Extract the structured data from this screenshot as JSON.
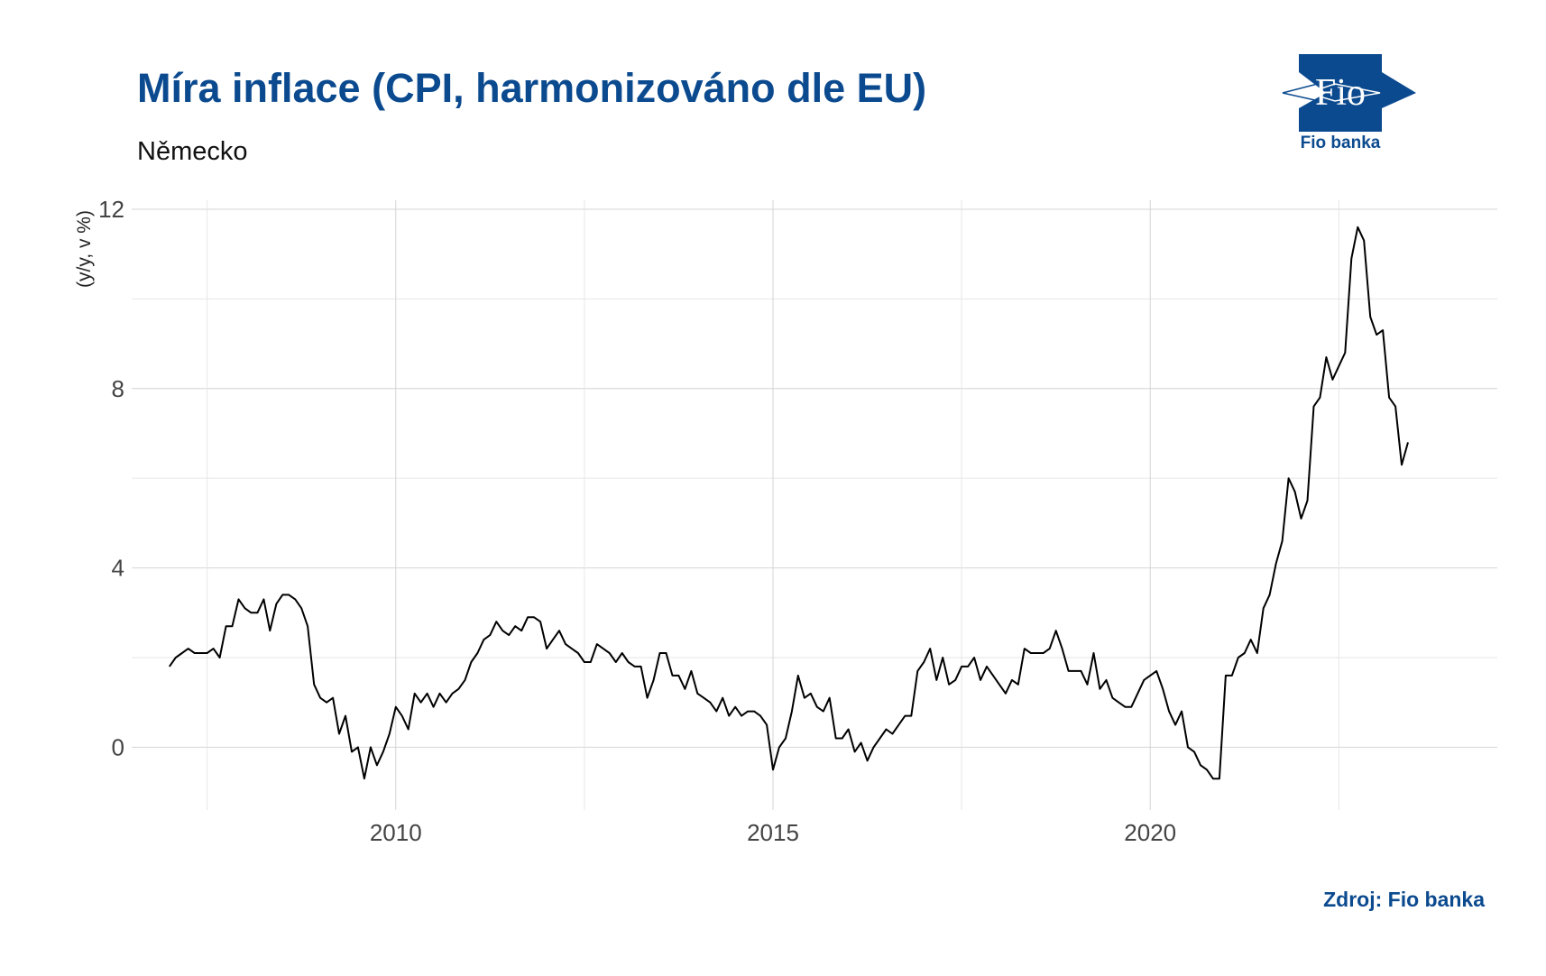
{
  "header": {
    "title": "Míra inflace (CPI, harmonizováno dle EU)",
    "subtitle": "Německo"
  },
  "logo": {
    "mark_text": "Fio",
    "caption": "Fio banka",
    "color": "#0b4a8f"
  },
  "footer": {
    "source": "Zdroj: Fio banka"
  },
  "chart_data": {
    "type": "line",
    "title": "Míra inflace (CPI, harmonizováno dle EU)",
    "subtitle": "Německo",
    "xlabel": "",
    "ylabel": "(y/y, v %)",
    "xlim": [
      2006.5,
      2024.6
    ],
    "ylim": [
      -1.4,
      12.2
    ],
    "x_ticks": [
      2010,
      2015,
      2020
    ],
    "x_tick_labels": [
      "2010",
      "2015",
      "2020"
    ],
    "x_minor_gridlines": [
      2007.5,
      2012.5,
      2017.5,
      2022.5
    ],
    "y_ticks": [
      0,
      4,
      8,
      12
    ],
    "y_tick_labels": [
      "0",
      "4",
      "8",
      "12"
    ],
    "y_minor_gridlines": [
      2,
      6,
      10
    ],
    "grid": true,
    "line_color": "#000000",
    "series": [
      {
        "x": [
          2007.0,
          2007.083,
          2007.167,
          2007.25,
          2007.333,
          2007.417,
          2007.5,
          2007.583,
          2007.667,
          2007.75,
          2007.833,
          2007.917,
          2008.0,
          2008.083,
          2008.167,
          2008.25,
          2008.333,
          2008.417,
          2008.5,
          2008.583,
          2008.667,
          2008.75,
          2008.833,
          2008.917,
          2009.0,
          2009.083,
          2009.167,
          2009.25,
          2009.333,
          2009.417,
          2009.5,
          2009.583,
          2009.667,
          2009.75,
          2009.833,
          2009.917,
          2010.0,
          2010.083,
          2010.167,
          2010.25,
          2010.333,
          2010.417,
          2010.5,
          2010.583,
          2010.667,
          2010.75,
          2010.833,
          2010.917,
          2011.0,
          2011.083,
          2011.167,
          2011.25,
          2011.333,
          2011.417,
          2011.5,
          2011.583,
          2011.667,
          2011.75,
          2011.833,
          2011.917,
          2012.0,
          2012.083,
          2012.167,
          2012.25,
          2012.333,
          2012.417,
          2012.5,
          2012.583,
          2012.667,
          2012.75,
          2012.833,
          2012.917,
          2013.0,
          2013.083,
          2013.167,
          2013.25,
          2013.333,
          2013.417,
          2013.5,
          2013.583,
          2013.667,
          2013.75,
          2013.833,
          2013.917,
          2014.0,
          2014.083,
          2014.167,
          2014.25,
          2014.333,
          2014.417,
          2014.5,
          2014.583,
          2014.667,
          2014.75,
          2014.833,
          2014.917,
          2015.0,
          2015.083,
          2015.167,
          2015.25,
          2015.333,
          2015.417,
          2015.5,
          2015.583,
          2015.667,
          2015.75,
          2015.833,
          2015.917,
          2016.0,
          2016.083,
          2016.167,
          2016.25,
          2016.333,
          2016.417,
          2016.5,
          2016.583,
          2016.667,
          2016.75,
          2016.833,
          2016.917,
          2017.0,
          2017.083,
          2017.167,
          2017.25,
          2017.333,
          2017.417,
          2017.5,
          2017.583,
          2017.667,
          2017.75,
          2017.833,
          2017.917,
          2018.0,
          2018.083,
          2018.167,
          2018.25,
          2018.333,
          2018.417,
          2018.5,
          2018.583,
          2018.667,
          2018.75,
          2018.833,
          2018.917,
          2019.0,
          2019.083,
          2019.167,
          2019.25,
          2019.333,
          2019.417,
          2019.5,
          2019.583,
          2019.667,
          2019.75,
          2019.833,
          2019.917,
          2020.0,
          2020.083,
          2020.167,
          2020.25,
          2020.333,
          2020.417,
          2020.5,
          2020.583,
          2020.667,
          2020.75,
          2020.833,
          2020.917,
          2021.0,
          2021.083,
          2021.167,
          2021.25,
          2021.333,
          2021.417,
          2021.5,
          2021.583,
          2021.667,
          2021.75,
          2021.833,
          2021.917,
          2022.0,
          2022.083,
          2022.167,
          2022.25,
          2022.333,
          2022.417,
          2022.5,
          2022.583,
          2022.667,
          2022.75,
          2022.833,
          2022.917,
          2023.0,
          2023.083,
          2023.167,
          2023.25,
          2023.333,
          2023.417
        ],
        "y": [
          1.8,
          2.0,
          2.1,
          2.2,
          2.1,
          2.1,
          2.1,
          2.2,
          2.0,
          2.7,
          2.7,
          3.3,
          3.1,
          3.0,
          3.0,
          3.3,
          2.6,
          3.2,
          3.4,
          3.4,
          3.3,
          3.1,
          2.7,
          1.4,
          1.1,
          1.0,
          1.1,
          0.3,
          0.7,
          -0.1,
          0.0,
          -0.7,
          0.0,
          -0.4,
          -0.1,
          0.3,
          0.9,
          0.7,
          0.4,
          1.2,
          1.0,
          1.2,
          0.9,
          1.2,
          1.0,
          1.2,
          1.3,
          1.5,
          1.9,
          2.1,
          2.4,
          2.5,
          2.8,
          2.6,
          2.5,
          2.7,
          2.6,
          2.9,
          2.9,
          2.8,
          2.2,
          2.4,
          2.6,
          2.3,
          2.2,
          2.1,
          1.9,
          1.9,
          2.3,
          2.2,
          2.1,
          1.9,
          2.1,
          1.9,
          1.8,
          1.8,
          1.1,
          1.5,
          2.1,
          2.1,
          1.6,
          1.6,
          1.3,
          1.7,
          1.2,
          1.1,
          1.0,
          0.8,
          1.1,
          0.7,
          0.9,
          0.7,
          0.8,
          0.8,
          0.7,
          0.5,
          -0.5,
          0.0,
          0.2,
          0.8,
          1.6,
          1.1,
          1.2,
          0.9,
          0.8,
          1.1,
          0.2,
          0.2,
          0.4,
          -0.1,
          0.1,
          -0.3,
          0.0,
          0.2,
          0.4,
          0.3,
          0.5,
          0.7,
          0.7,
          1.7,
          1.9,
          2.2,
          1.5,
          2.0,
          1.4,
          1.5,
          1.8,
          1.8,
          2.0,
          1.5,
          1.8,
          1.6,
          1.4,
          1.2,
          1.5,
          1.4,
          2.2,
          2.1,
          2.1,
          2.1,
          2.2,
          2.6,
          2.2,
          1.7,
          1.7,
          1.7,
          1.4,
          2.1,
          1.3,
          1.5,
          1.1,
          1.0,
          0.9,
          0.9,
          1.2,
          1.5,
          1.6,
          1.7,
          1.3,
          0.8,
          0.5,
          0.8,
          0.0,
          -0.1,
          -0.4,
          -0.5,
          -0.7,
          -0.7,
          1.6,
          1.6,
          2.0,
          2.1,
          2.4,
          2.1,
          3.1,
          3.4,
          4.1,
          4.6,
          6.0,
          5.7,
          5.1,
          5.5,
          7.6,
          7.8,
          8.7,
          8.2,
          8.5,
          8.8,
          10.9,
          11.6,
          11.3,
          9.6,
          9.2,
          9.3,
          7.8,
          7.6,
          6.3,
          6.8
        ]
      }
    ]
  }
}
